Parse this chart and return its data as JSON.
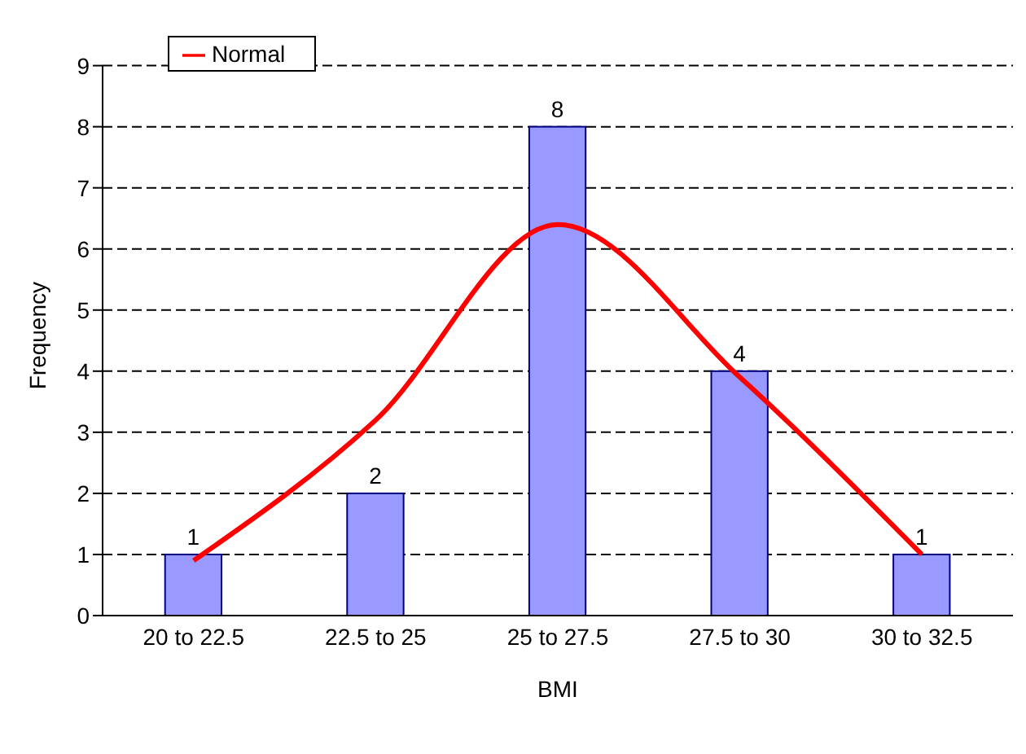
{
  "chart_data": {
    "type": "bar",
    "xlabel": "BMI",
    "ylabel": "Frequency",
    "categories": [
      "20 to 22.5",
      "22.5 to 25",
      "25 to 27.5",
      "27.5 to 30",
      "30 to 32.5"
    ],
    "series": [
      {
        "color": "#9999ff",
        "values": [
          1,
          2,
          8,
          4,
          1
        ],
        "value_labels": [
          "1",
          "2",
          "8",
          "4",
          "1"
        ]
      },
      {
        "type": "line",
        "name": "Normal",
        "color": "#ff0000",
        "values": [
          0.9,
          3.2,
          6.4,
          3.9,
          1.0
        ]
      }
    ],
    "ylim": [
      0,
      9
    ],
    "yticks": [
      0,
      1,
      2,
      3,
      4,
      5,
      6,
      7,
      8,
      9
    ],
    "grid": "y",
    "legend": "top left",
    "marker": "none",
    "line_style": "solid"
  }
}
